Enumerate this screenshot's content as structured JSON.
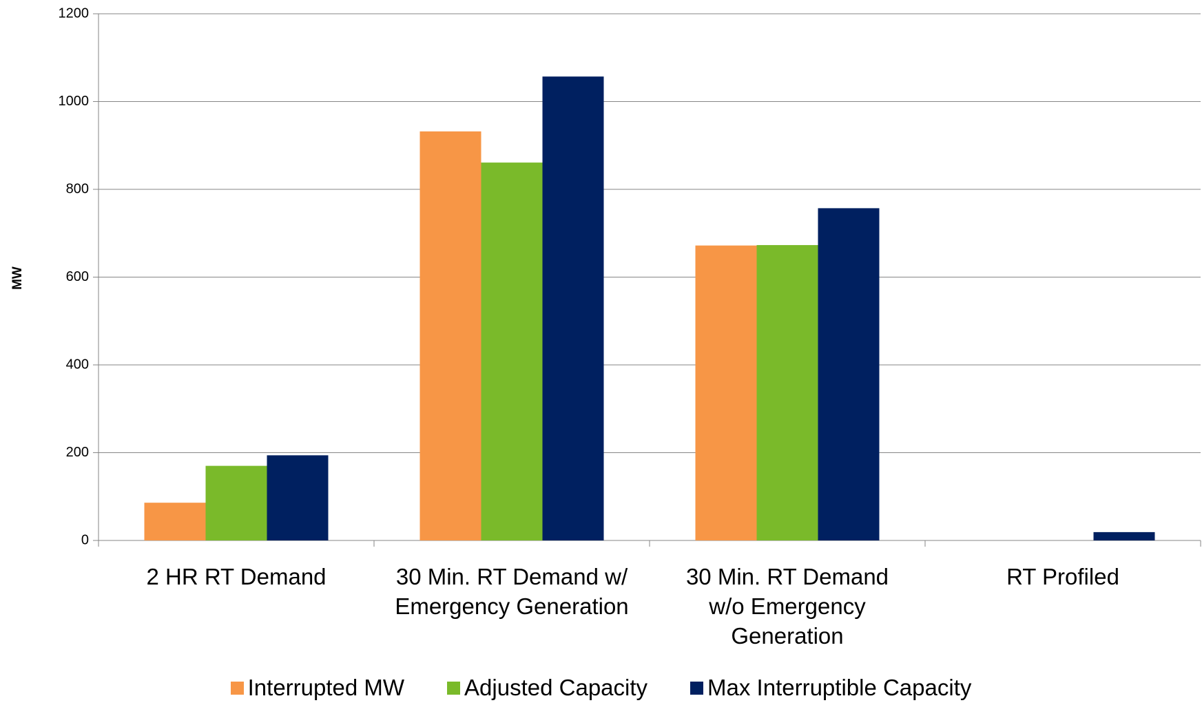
{
  "chart_data": {
    "type": "bar",
    "y_label": "MW",
    "categories": [
      "2 HR RT Demand",
      "30 Min. RT Demand w/ Emergency Generation",
      "30 Min. RT Demand w/o Emergency Generation",
      "RT Profiled"
    ],
    "series": [
      {
        "name": "Interrupted MW",
        "color": "#f79646",
        "values": [
          86,
          932,
          672,
          0
        ]
      },
      {
        "name": "Adjusted Capacity",
        "color": "#7aba2a",
        "values": [
          170,
          861,
          673,
          0
        ]
      },
      {
        "name": "Max Interruptible Capacity",
        "color": "#002060",
        "values": [
          194,
          1057,
          757,
          19
        ]
      }
    ],
    "ylim": [
      0,
      1200
    ],
    "yticks": [
      0,
      200,
      400,
      600,
      800,
      1000,
      1200
    ],
    "grid": true,
    "legend": "bottom"
  }
}
